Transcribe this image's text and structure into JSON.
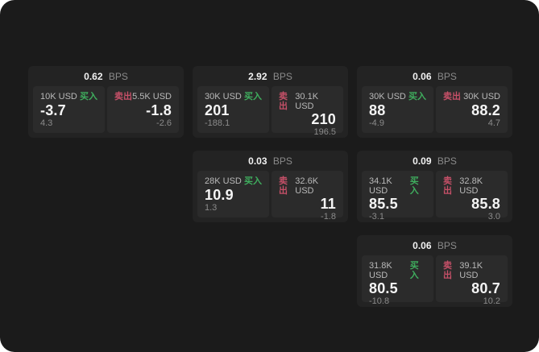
{
  "labels": {
    "bps_unit": "BPS",
    "buy": "买入",
    "sell": "卖出"
  },
  "colors": {
    "buy_green": "#3fae5e",
    "sell_red": "#c65068",
    "page_bg": "#1b1b1b",
    "card_bg": "#232323",
    "panel_bg": "#2b2b2b"
  },
  "cards": [
    {
      "bps": "0.62",
      "buy": {
        "amount": "10K USD",
        "value": "-3.7",
        "sub": "4.3"
      },
      "sell": {
        "amount": "5.5K USD",
        "value": "-1.8",
        "sub": "-2.6"
      }
    },
    {
      "bps": "2.92",
      "buy": {
        "amount": "30K USD",
        "value": "201",
        "sub": "-188.1"
      },
      "sell": {
        "amount": "30.1K USD",
        "value": "210",
        "sub": "196.5"
      }
    },
    {
      "bps": "0.06",
      "buy": {
        "amount": "30K USD",
        "value": "88",
        "sub": "-4.9"
      },
      "sell": {
        "amount": "30K USD",
        "value": "88.2",
        "sub": "4.7"
      }
    },
    {
      "bps": "0.03",
      "buy": {
        "amount": "28K USD",
        "value": "10.9",
        "sub": "1.3"
      },
      "sell": {
        "amount": "32.6K USD",
        "value": "11",
        "sub": "-1.8"
      }
    },
    {
      "bps": "0.09",
      "buy": {
        "amount": "34.1K USD",
        "value": "85.5",
        "sub": "-3.1"
      },
      "sell": {
        "amount": "32.8K USD",
        "value": "85.8",
        "sub": "3.0"
      }
    },
    {
      "bps": "0.06",
      "buy": {
        "amount": "31.8K USD",
        "value": "80.5",
        "sub": "-10.8"
      },
      "sell": {
        "amount": "39.1K USD",
        "value": "80.7",
        "sub": "10.2"
      }
    }
  ]
}
